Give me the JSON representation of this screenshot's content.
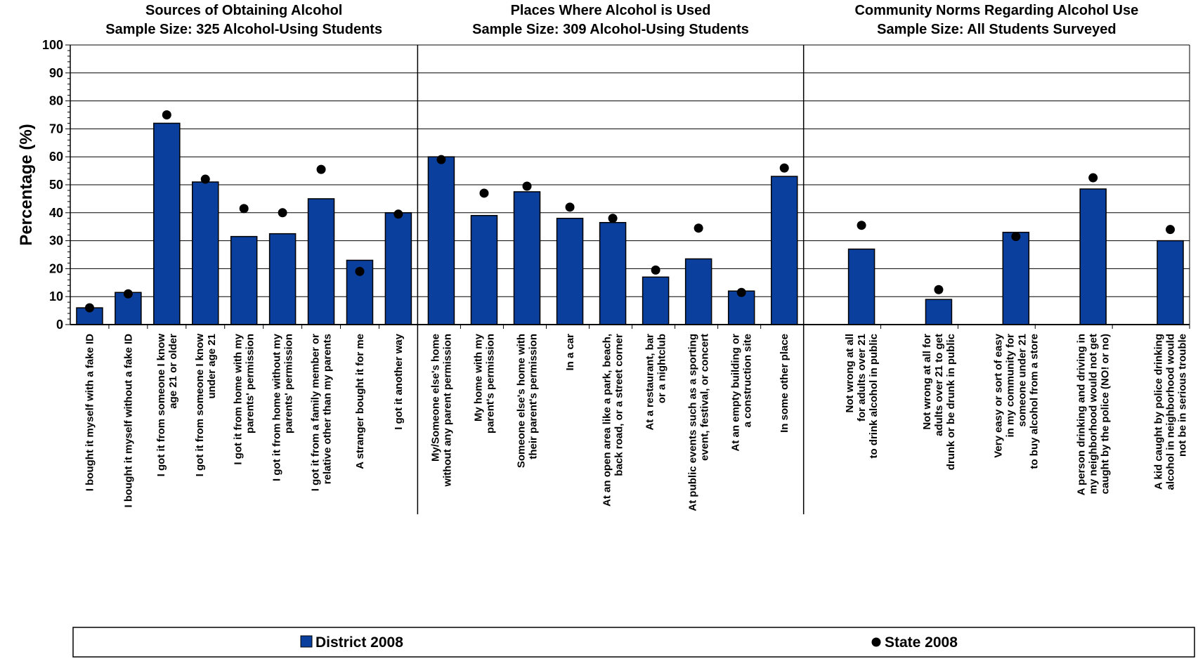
{
  "chart_data": {
    "type": "bar",
    "ylabel": "Percentage (%)",
    "ylim": [
      0,
      100
    ],
    "yticks": [
      "0",
      "10",
      "20",
      "30",
      "40",
      "50",
      "60",
      "70",
      "80",
      "90",
      "100"
    ],
    "grid": true,
    "legend_position": "bottom",
    "legend": [
      {
        "name": "District 2008",
        "marker": "bar"
      },
      {
        "name": "State 2008",
        "marker": "dot"
      }
    ],
    "colors": {
      "district": "#0b3f9e",
      "state": "#000000",
      "grid": "#000000"
    },
    "panels": [
      {
        "title": [
          "Sources of Obtaining Alcohol",
          "Sample Size: 325 Alcohol-Using Students"
        ],
        "categories": [
          [
            "I bought it myself with a fake ID"
          ],
          [
            "I bought it myself without a fake ID"
          ],
          [
            "I got it from someone I know",
            "age 21 or older"
          ],
          [
            "I got it from someone I know",
            "under age 21"
          ],
          [
            "I got it from home with my",
            "parents' permission"
          ],
          [
            "I got it from home without my",
            "parents' permission"
          ],
          [
            "I got it from a family member or",
            "relative other than my parents"
          ],
          [
            "A stranger bought it for me"
          ],
          [
            "I got it another way"
          ]
        ],
        "district": [
          6,
          11.5,
          72,
          51,
          31.5,
          32.5,
          45,
          23,
          40
        ],
        "state": [
          6,
          11,
          75,
          52,
          41.5,
          40,
          55.5,
          19,
          39.5
        ]
      },
      {
        "title": [
          "Places Where Alcohol is Used",
          "Sample Size: 309 Alcohol-Using Students"
        ],
        "categories": [
          [
            "My/Someone else's home",
            "without any parent permission"
          ],
          [
            "My home with my",
            "parent's permission"
          ],
          [
            "Someone else's home with",
            "their parent's permission"
          ],
          [
            "In a car"
          ],
          [
            "At an open area like a park, beach,",
            "back road, or a street corner"
          ],
          [
            "At a restaurant, bar",
            "or a nightclub"
          ],
          [
            "At public events such as a sporting",
            "event, festival, or concert"
          ],
          [
            "At an empty building or",
            "a construction site"
          ],
          [
            "In some other place"
          ]
        ],
        "district": [
          60,
          39,
          47.5,
          38,
          36.5,
          17,
          23.5,
          12,
          53
        ],
        "state": [
          59,
          47,
          49.5,
          42,
          38,
          19.5,
          34.5,
          11.5,
          56
        ]
      },
      {
        "title": [
          "Community Norms Regarding Alcohol Use",
          "Sample Size: All Students Surveyed"
        ],
        "categories": [
          [
            "Not wrong at all",
            "for adults over 21",
            "to drink alcohol in public"
          ],
          [
            "Not wrong at all for",
            "adults over 21 to get",
            "drunk or be drunk in public"
          ],
          [
            "Very easy or sort of easy",
            "in my community for",
            "someone under 21",
            "to buy alcohol from a store"
          ],
          [
            "A person drinking and driving in",
            "my neighborhood would not get",
            "caught by the police (NO! or no)"
          ],
          [
            "A kid caught by police drinking",
            "alcohol in neighborhood would",
            "not be in serious trouble"
          ]
        ],
        "district": [
          27,
          9,
          33,
          48.5,
          30
        ],
        "state": [
          35.5,
          12.5,
          31.5,
          52.5,
          34
        ]
      }
    ]
  }
}
